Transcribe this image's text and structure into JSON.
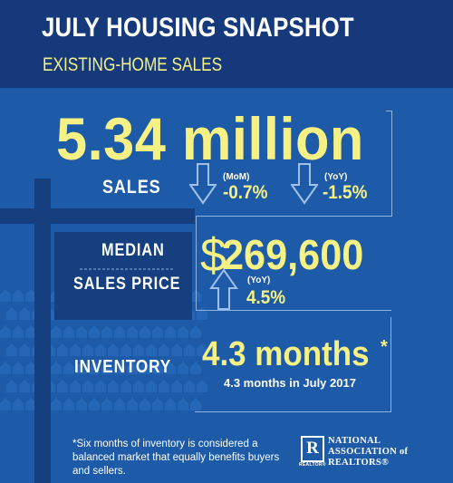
{
  "header": {
    "title": "JULY HOUSING SNAPSHOT",
    "subtitle": "EXISTING-HOME SALES"
  },
  "sales": {
    "value": "5.34 million",
    "label": "SALES",
    "mom_label": "(MoM)",
    "mom_value": "-0.7%",
    "yoy_label": "(YoY)",
    "yoy_value": "-1.5%"
  },
  "median_price": {
    "label_line1": "MEDIAN",
    "label_line2": "SALES PRICE",
    "currency": "$",
    "value": "269,600",
    "yoy_label": "(YoY)",
    "yoy_value": "4.5%"
  },
  "inventory": {
    "label": "INVENTORY",
    "value": "4.3 months",
    "asterisk": "*",
    "note": "4.3 months in July 2017"
  },
  "footnote": "*Six months of inventory is considered a balanced market that equally benefits buyers and sellers.",
  "logo": {
    "mark": "R",
    "small": "REALTOR®",
    "line1": "NATIONAL",
    "line2": "ASSOCIATION of",
    "line3": "REALTORS®"
  },
  "colors": {
    "background": "#1d5aa8",
    "header": "#15397a",
    "accent_yellow": "#f6f184",
    "arrow": "#9ec0ea"
  }
}
